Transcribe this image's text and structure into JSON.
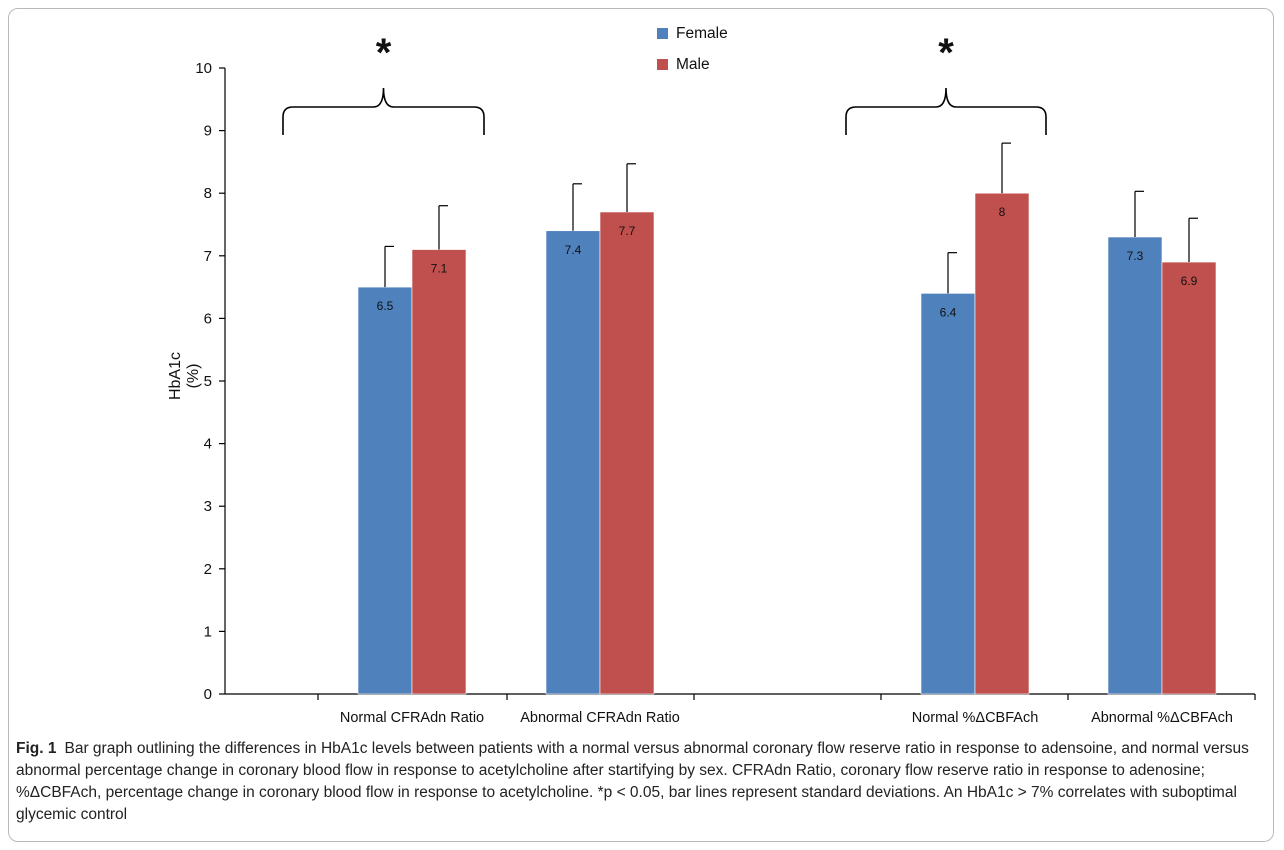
{
  "figure": {
    "label": "Fig. 1",
    "caption": "Bar graph outlining the differences in HbA1c levels between patients with a normal versus abnormal coronary flow reserve ratio in response to adensoine, and normal versus abnormal percentage change in coronary blood flow in response to acetylcholine after startifying by sex. CFRAdn Ratio, coronary flow reserve ratio in response to adenosine; %ΔCBFAch, percentage change in coronary blood flow in response to acetylcholine. *p < 0.05, bar lines represent standard deviations. An HbA1c > 7% correlates with suboptimal glycemic control"
  },
  "chart_data": {
    "type": "bar",
    "title": "",
    "ylabel_line1": "HbA1c",
    "ylabel_line2": "(%)",
    "xlabel": "",
    "ylim": [
      0,
      10
    ],
    "yticks": [
      0,
      1,
      2,
      3,
      4,
      5,
      6,
      7,
      8,
      9,
      10
    ],
    "grid": false,
    "legend_position": "top-center",
    "categories": [
      "Normal CFRAdn Ratio",
      "Abnormal CFRAdn Ratio",
      "Normal %ΔCBFAch",
      "Abnormal %ΔCBFAch"
    ],
    "series": [
      {
        "name": "Female",
        "color": "#4f81bd",
        "values": [
          6.5,
          7.4,
          6.4,
          7.3
        ],
        "labels": [
          "6.5",
          "7.4",
          "6.4",
          "7.3"
        ],
        "sd": [
          0.65,
          0.75,
          0.65,
          0.73
        ]
      },
      {
        "name": "Male",
        "color": "#c0504d",
        "values": [
          7.1,
          7.7,
          8.0,
          6.9
        ],
        "labels": [
          "7.1",
          "7.7",
          "8",
          "6.9"
        ],
        "sd": [
          0.7,
          0.77,
          0.8,
          0.7
        ]
      }
    ],
    "annotations": [
      {
        "text": "*",
        "categories": [
          0,
          1
        ]
      },
      {
        "text": "*",
        "categories": [
          2,
          3
        ]
      }
    ]
  }
}
